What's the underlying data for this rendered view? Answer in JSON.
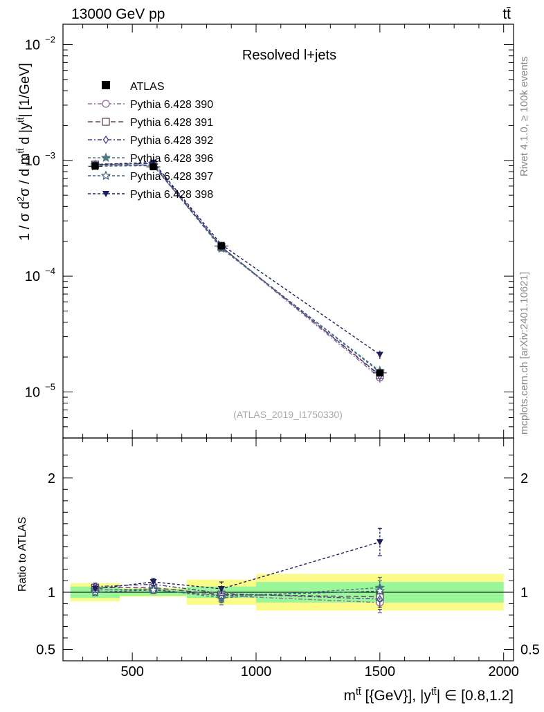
{
  "header": {
    "left": "13000 GeV pp",
    "right": "tt̄"
  },
  "side": {
    "rivet": "Rivet 4.1.0, ≥ 100k events",
    "mcplots": "mcplots.cern.ch [arXiv:2401.10621]"
  },
  "chart_data": {
    "type": "line",
    "title": "Resolved l+jets",
    "watermark": "(ATLAS_2019_I1750330)",
    "xlabel": "m^{tt̄} [{GeV}], |y^{tt̄}| ∈ [0.8,1.2]",
    "xlabel_parts": {
      "pre": "m",
      "sup1": "tt̄",
      "mid": " [{GeV}], |y",
      "sup2": "tt̄",
      "post": "| ∈ [0.8,1.2]"
    },
    "ylabel": "1 / σ d²σ / d m^{tt̄} d |y^{tt̄}| [1/GeV]",
    "ylabel_parts": {
      "a": "1 / σ d",
      "b": "2",
      "c": "σ / d m",
      "d": "tt̄",
      "e": " d |y",
      "f": "tt̄",
      "g": "| [1/GeV]"
    },
    "ratio_ylabel": "Ratio to ATLAS",
    "xlim": [
      220,
      2040
    ],
    "ylim": [
      4e-06,
      0.015
    ],
    "ratio_ylim": [
      0.4,
      2.35
    ],
    "yscale": "log",
    "x_ticks": [
      500,
      1000,
      1500,
      2000
    ],
    "x_tick_labels": [
      "500",
      "1000",
      "1500",
      "2000"
    ],
    "y_ticks": [
      {
        "value": 1e-05,
        "base": "10",
        "exp": "−5"
      },
      {
        "value": 0.0001,
        "base": "10",
        "exp": "−4"
      },
      {
        "value": 0.001,
        "base": "10",
        "exp": "−3"
      },
      {
        "value": 0.01,
        "base": "10",
        "exp": "−2"
      }
    ],
    "ratio_ticks": [
      0.5,
      1,
      2
    ],
    "ratio_tick_labels": [
      "0.5",
      "1",
      "2"
    ],
    "bin_edges": [
      250,
      450,
      720,
      1000,
      2000
    ],
    "x": [
      350,
      585,
      860,
      1500
    ],
    "data": {
      "name": "ATLAS",
      "values": [
        0.00089,
        0.00088,
        0.000182,
        1.46e-05
      ],
      "stat_band": [
        [
          0.95,
          1.05
        ],
        [
          0.97,
          1.03
        ],
        [
          0.95,
          1.05
        ],
        [
          0.91,
          1.09
        ]
      ],
      "total_band": [
        [
          0.92,
          1.08
        ],
        [
          0.96,
          1.04
        ],
        [
          0.89,
          1.11
        ],
        [
          0.84,
          1.16
        ]
      ]
    },
    "series": [
      {
        "name": "Pythia 6.428 390",
        "color": "#8e6a9a",
        "marker": "circle-open",
        "dash": "6,3,2,3",
        "values": [
          0.00091,
          0.0009,
          0.000178,
          1.33e-05
        ],
        "ratio": [
          1.02,
          1.02,
          0.97,
          0.91
        ],
        "ratio_err": [
          0.03,
          0.03,
          0.06,
          0.09
        ]
      },
      {
        "name": "Pythia 6.428 391",
        "color": "#6c3f5c",
        "marker": "square-open",
        "dash": "7,4",
        "values": [
          0.00092,
          0.00091,
          0.000179,
          1.4e-05
        ],
        "ratio": [
          1.04,
          1.04,
          0.98,
          0.96
        ],
        "ratio_err": [
          0.03,
          0.03,
          0.06,
          0.09
        ]
      },
      {
        "name": "Pythia 6.428 392",
        "color": "#4a3a8a",
        "marker": "diamond-open",
        "dash": "6,3,2,3",
        "values": [
          0.00093,
          0.00094,
          0.00018,
          1.38e-05
        ],
        "ratio": [
          1.05,
          1.07,
          0.99,
          0.94
        ],
        "ratio_err": [
          0.03,
          0.03,
          0.06,
          0.09
        ]
      },
      {
        "name": "Pythia 6.428 396",
        "color": "#4d7a80",
        "marker": "star-filled",
        "dash": "4,3",
        "values": [
          0.00091,
          0.00091,
          0.000173,
          1.52e-05
        ],
        "ratio": [
          1.02,
          1.03,
          0.95,
          1.04
        ],
        "ratio_err": [
          0.03,
          0.03,
          0.06,
          0.09
        ]
      },
      {
        "name": "Pythia 6.428 397",
        "color": "#3a5f80",
        "marker": "star-open",
        "dash": "4,3",
        "values": [
          0.00089,
          0.0009,
          0.000177,
          1.48e-05
        ],
        "ratio": [
          1.0,
          1.02,
          0.97,
          1.01
        ],
        "ratio_err": [
          0.03,
          0.03,
          0.06,
          0.09
        ]
      },
      {
        "name": "Pythia 6.428 398",
        "color": "#1c1f5a",
        "marker": "triangle-down-filled",
        "dash": "4,3",
        "values": [
          0.00092,
          0.00096,
          0.000187,
          2.1e-05
        ],
        "ratio": [
          1.03,
          1.09,
          1.03,
          1.44
        ],
        "ratio_err": [
          0.03,
          0.03,
          0.06,
          0.12
        ]
      }
    ]
  }
}
